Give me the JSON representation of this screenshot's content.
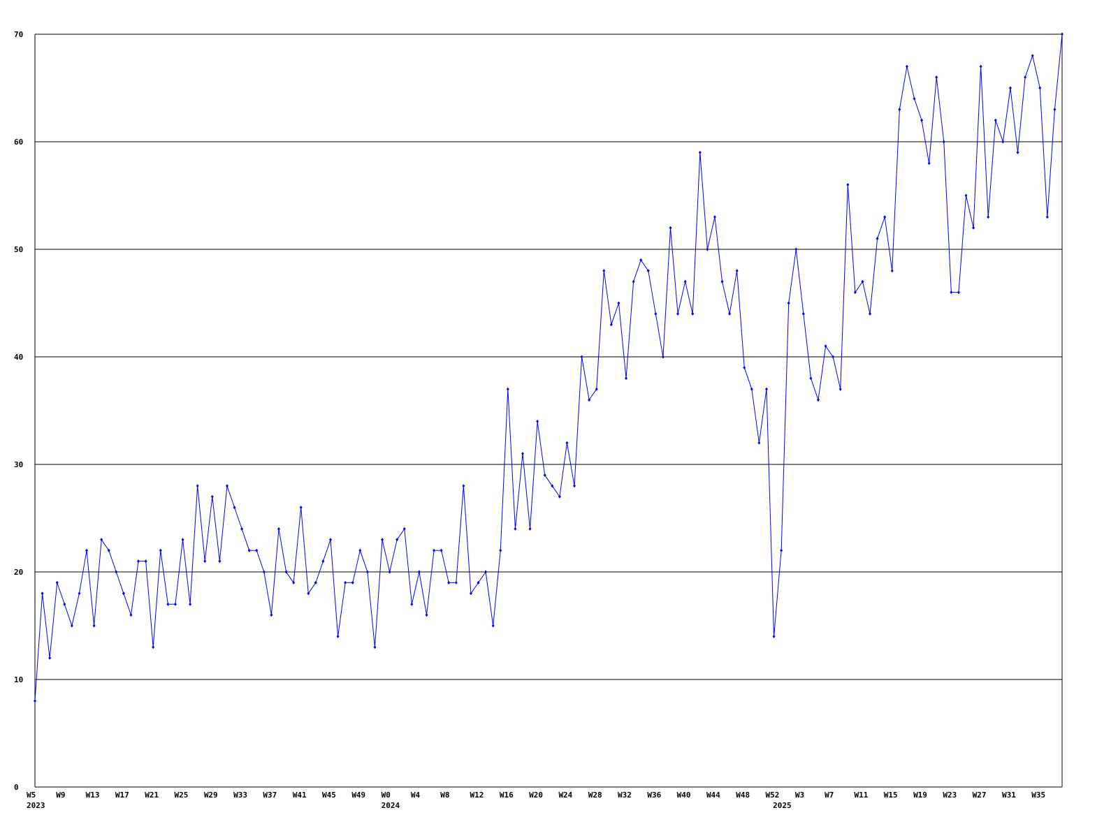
{
  "chart_data": {
    "type": "line",
    "categories": [
      "W5",
      null,
      null,
      null,
      "W9",
      null,
      null,
      null,
      "W13",
      null,
      null,
      null,
      "W17",
      null,
      null,
      null,
      "W21",
      null,
      null,
      null,
      "W25",
      null,
      null,
      null,
      "W29",
      null,
      null,
      null,
      "W33",
      null,
      null,
      null,
      "W37",
      null,
      null,
      null,
      "W41",
      null,
      null,
      null,
      "W45",
      null,
      null,
      null,
      "W49",
      null,
      null,
      null,
      "W0",
      null,
      null,
      null,
      "W4",
      null,
      null,
      null,
      "W8",
      null,
      null,
      null,
      "W12",
      null,
      null,
      null,
      "W16",
      null,
      null,
      null,
      "W20",
      null,
      null,
      null,
      "W24",
      null,
      null,
      null,
      "W28",
      null,
      null,
      null,
      "W32",
      null,
      null,
      null,
      "W36",
      null,
      null,
      null,
      "W40",
      null,
      null,
      null,
      "W44",
      null,
      null,
      null,
      "W48",
      null,
      null,
      null,
      "W52",
      null,
      null,
      null,
      "W3",
      null,
      null,
      null,
      "W7",
      null,
      null,
      null,
      "W11",
      null,
      null,
      null,
      "W15",
      null,
      null,
      null,
      "W19",
      null,
      null,
      null,
      "W23",
      null,
      null,
      null,
      "W27",
      null,
      null,
      null,
      "W31",
      null,
      null,
      null,
      "W35",
      null,
      null,
      null
    ],
    "category_years": [
      "2023",
      null,
      null,
      null,
      null,
      null,
      null,
      null,
      null,
      null,
      null,
      null,
      null,
      null,
      null,
      null,
      null,
      null,
      null,
      null,
      null,
      null,
      null,
      null,
      null,
      null,
      null,
      null,
      null,
      null,
      null,
      null,
      null,
      null,
      null,
      null,
      null,
      null,
      null,
      null,
      null,
      null,
      null,
      null,
      null,
      null,
      null,
      null,
      "2024",
      null,
      null,
      null,
      null,
      null,
      null,
      null,
      null,
      null,
      null,
      null,
      null,
      null,
      null,
      null,
      null,
      null,
      null,
      null,
      null,
      null,
      null,
      null,
      null,
      null,
      null,
      null,
      null,
      null,
      null,
      null,
      null,
      null,
      null,
      null,
      null,
      null,
      null,
      null,
      null,
      null,
      null,
      null,
      null,
      null,
      null,
      null,
      null,
      null,
      null,
      null,
      null,
      "2025",
      null,
      null,
      null,
      null,
      null,
      null,
      null,
      null,
      null,
      null,
      null,
      null,
      null,
      null,
      null,
      null,
      null,
      null,
      null,
      null,
      null,
      null,
      null,
      null,
      null,
      null,
      null,
      null,
      null,
      null,
      null,
      null,
      null,
      null,
      null,
      null,
      null,
      null
    ],
    "series": [
      {
        "color": "#0000ff",
        "values": [
          8,
          18,
          12,
          19,
          17,
          15,
          18,
          22,
          15,
          23,
          22,
          20,
          18,
          16,
          21,
          21,
          13,
          22,
          17,
          17,
          23,
          17,
          28,
          21,
          27,
          21,
          28,
          26,
          24,
          22,
          22,
          20,
          16,
          24,
          20,
          19,
          26,
          18,
          19,
          21,
          23,
          14,
          19,
          19,
          22,
          20,
          13,
          23,
          20,
          23,
          24,
          17,
          20,
          16,
          22,
          22,
          19,
          19,
          28,
          18,
          19,
          20,
          15,
          22,
          37,
          24,
          31,
          24,
          34,
          29,
          28,
          27,
          32,
          28,
          40,
          36,
          37,
          48,
          43,
          45,
          38,
          47,
          49,
          48,
          44,
          40,
          52,
          44,
          47,
          44,
          59,
          50,
          53,
          47,
          44,
          48,
          39,
          37,
          32,
          37,
          14,
          22,
          45,
          50,
          44,
          38,
          36,
          41,
          40,
          37,
          56,
          46,
          47,
          44,
          51,
          53,
          48,
          63,
          67,
          64,
          62,
          58,
          66,
          60,
          46,
          46,
          55,
          52,
          67,
          53,
          62,
          60,
          65,
          59,
          66,
          68,
          65,
          53,
          63,
          70
        ]
      }
    ],
    "ylim": [
      0,
      70
    ],
    "yticks": [
      0,
      10,
      20,
      30,
      40,
      50,
      60,
      70
    ],
    "grid": true
  }
}
